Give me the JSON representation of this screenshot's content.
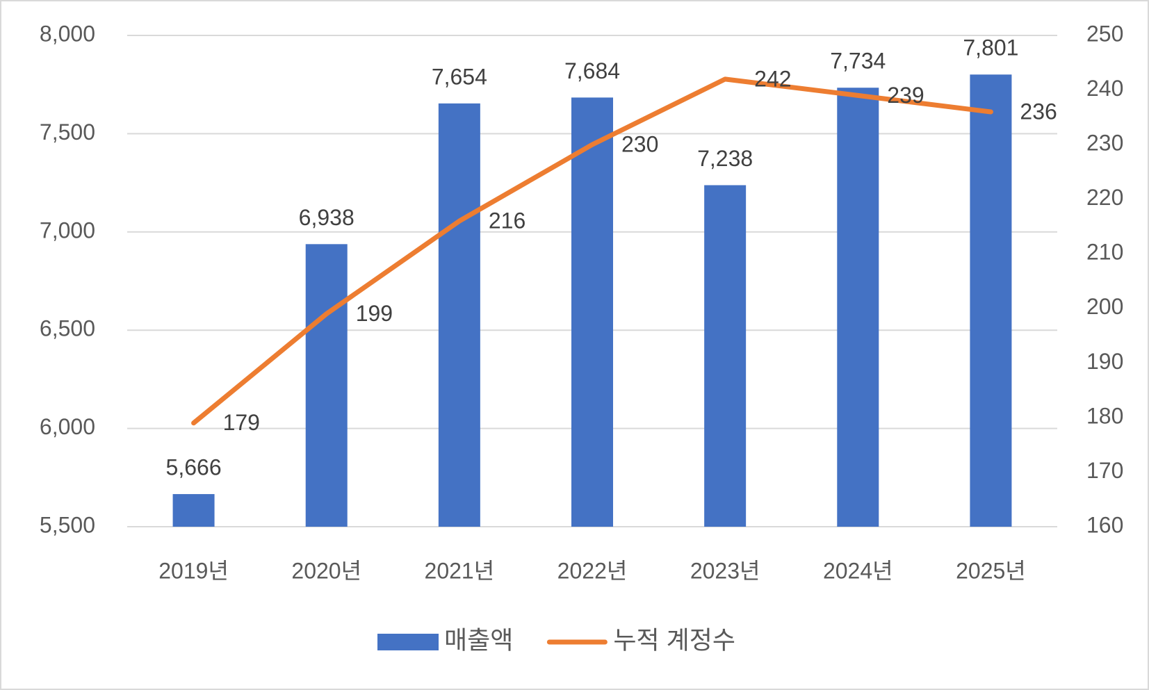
{
  "chart_data": {
    "type": "combo",
    "categories": [
      "2019년",
      "2020년",
      "2021년",
      "2022년",
      "2023년",
      "2024년",
      "2025년"
    ],
    "series": [
      {
        "name": "매출액",
        "type": "bar",
        "color": "#4472c4",
        "values": [
          5666,
          6938,
          7654,
          7684,
          7238,
          7734,
          7801
        ],
        "value_labels": [
          "5,666",
          "6,938",
          "7,654",
          "7,684",
          "7,238",
          "7,734",
          "7,801"
        ]
      },
      {
        "name": "누적 계정수",
        "type": "line",
        "axis": "y2",
        "color": "#ed7d31",
        "values": [
          179,
          199,
          216,
          230,
          242,
          239,
          236
        ]
      }
    ],
    "ylim": [
      5500,
      8000
    ],
    "yticks": [
      {
        "value": 5500,
        "label": "5,500"
      },
      {
        "value": 6000,
        "label": "6,000"
      },
      {
        "value": 6500,
        "label": "6,500"
      },
      {
        "value": 7000,
        "label": "7,000"
      },
      {
        "value": 7500,
        "label": "7,500"
      },
      {
        "value": 8000,
        "label": "8,000"
      }
    ],
    "y2lim": [
      160,
      250
    ],
    "y2ticks": [
      160,
      170,
      180,
      190,
      200,
      210,
      220,
      230,
      240,
      250
    ],
    "grid": true,
    "legend": "bottom"
  }
}
